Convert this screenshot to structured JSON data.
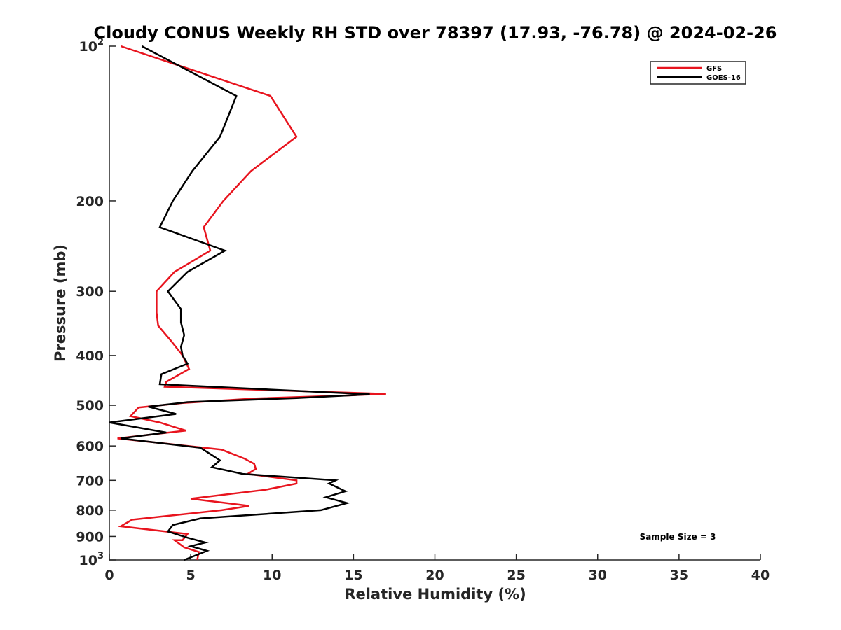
{
  "chart_data": {
    "type": "line",
    "title": "Cloudy CONUS Weekly RH STD over 78397 (17.93, -76.78) @ 2024-02-26",
    "xlabel": "Relative Humidity (%)",
    "ylabel": "Pressure (mb)",
    "xlim": [
      0,
      40
    ],
    "ylim": [
      100,
      1000
    ],
    "y_scale": "log",
    "y_reversed": true,
    "grid": false,
    "legend_position": "top-right",
    "x_ticks": [
      0,
      5,
      10,
      15,
      20,
      25,
      30,
      35,
      40
    ],
    "x_tick_labels": [
      "0",
      "5",
      "10",
      "15",
      "20",
      "25",
      "30",
      "35",
      "40"
    ],
    "y_ticks": [
      {
        "value": 100,
        "base": "10",
        "exp": "2"
      },
      {
        "value": 200,
        "base": "200",
        "exp": ""
      },
      {
        "value": 300,
        "base": "300",
        "exp": ""
      },
      {
        "value": 400,
        "base": "400",
        "exp": ""
      },
      {
        "value": 500,
        "base": "500",
        "exp": ""
      },
      {
        "value": 600,
        "base": "600",
        "exp": ""
      },
      {
        "value": 700,
        "base": "700",
        "exp": ""
      },
      {
        "value": 800,
        "base": "800",
        "exp": ""
      },
      {
        "value": 900,
        "base": "900",
        "exp": ""
      },
      {
        "value": 1000,
        "base": "10",
        "exp": "3"
      }
    ],
    "annotation": "Sample Size = 3",
    "series": [
      {
        "name": "GFS",
        "color": "#e8141e",
        "points": [
          [
            0.7,
            100
          ],
          [
            9.9,
            125
          ],
          [
            11.5,
            150
          ],
          [
            8.7,
            175
          ],
          [
            7.0,
            200
          ],
          [
            5.8,
            225
          ],
          [
            6.2,
            250
          ],
          [
            4.0,
            275
          ],
          [
            2.9,
            300
          ],
          [
            2.9,
            330
          ],
          [
            3.0,
            350
          ],
          [
            3.8,
            375
          ],
          [
            4.5,
            400
          ],
          [
            4.9,
            425
          ],
          [
            3.5,
            450
          ],
          [
            3.4,
            460
          ],
          [
            17.0,
            475
          ],
          [
            15.0,
            478
          ],
          [
            9.0,
            485
          ],
          [
            4.5,
            495
          ],
          [
            1.8,
            505
          ],
          [
            1.3,
            525
          ],
          [
            3.1,
            540
          ],
          [
            4.7,
            560
          ],
          [
            0.5,
            580
          ],
          [
            6.9,
            610
          ],
          [
            8.3,
            635
          ],
          [
            8.9,
            650
          ],
          [
            9.0,
            665
          ],
          [
            8.5,
            680
          ],
          [
            11.5,
            700
          ],
          [
            11.5,
            710
          ],
          [
            9.6,
            730
          ],
          [
            5.0,
            760
          ],
          [
            8.6,
            785
          ],
          [
            6.9,
            800
          ],
          [
            1.4,
            835
          ],
          [
            0.7,
            860
          ],
          [
            4.8,
            890
          ],
          [
            4.5,
            915
          ],
          [
            4.0,
            915
          ],
          [
            4.6,
            945
          ],
          [
            5.5,
            965
          ],
          [
            5.4,
            1000
          ]
        ]
      },
      {
        "name": "GOES-16",
        "color": "#000000",
        "points": [
          [
            2.0,
            100
          ],
          [
            7.8,
            125
          ],
          [
            6.8,
            150
          ],
          [
            5.1,
            175
          ],
          [
            3.9,
            200
          ],
          [
            3.1,
            225
          ],
          [
            7.1,
            250
          ],
          [
            4.8,
            275
          ],
          [
            3.6,
            300
          ],
          [
            4.4,
            325
          ],
          [
            4.4,
            345
          ],
          [
            4.6,
            365
          ],
          [
            4.4,
            385
          ],
          [
            4.5,
            400
          ],
          [
            4.8,
            415
          ],
          [
            3.2,
            435
          ],
          [
            3.1,
            455
          ],
          [
            16.0,
            476
          ],
          [
            11.5,
            484
          ],
          [
            4.8,
            493
          ],
          [
            2.4,
            503
          ],
          [
            4.1,
            520
          ],
          [
            0.0,
            540
          ],
          [
            3.5,
            565
          ],
          [
            0.7,
            580
          ],
          [
            5.6,
            605
          ],
          [
            6.3,
            625
          ],
          [
            6.8,
            640
          ],
          [
            6.3,
            660
          ],
          [
            8.2,
            680
          ],
          [
            13.9,
            700
          ],
          [
            13.5,
            710
          ],
          [
            14.5,
            735
          ],
          [
            13.3,
            755
          ],
          [
            14.6,
            775
          ],
          [
            13.0,
            800
          ],
          [
            5.6,
            830
          ],
          [
            3.9,
            855
          ],
          [
            3.6,
            880
          ],
          [
            4.8,
            905
          ],
          [
            5.9,
            925
          ],
          [
            5.0,
            940
          ],
          [
            6.0,
            960
          ],
          [
            4.6,
            1000
          ]
        ]
      }
    ]
  }
}
